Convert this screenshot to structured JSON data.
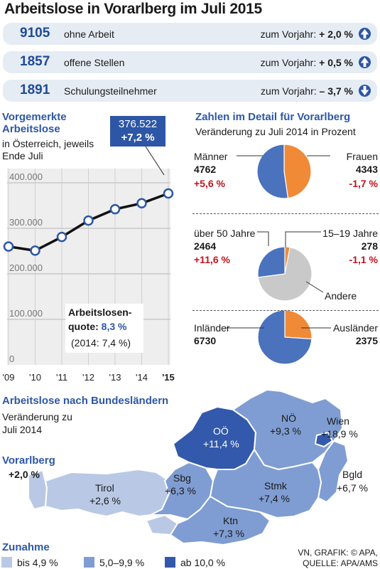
{
  "title": "Arbeitslose in Vorarlberg im Juli 2015",
  "stats": [
    {
      "value": "9105",
      "label": "ohne Arbeit",
      "change_label": "zum Vorjahr:",
      "change": "+ 2,0 %",
      "direction": "up"
    },
    {
      "value": "1857",
      "label": "offene Stellen",
      "change_label": "zum Vorjahr:",
      "change": "+ 0,5 %",
      "direction": "up"
    },
    {
      "value": "1891",
      "label": "Schulungsteilnehmer",
      "change_label": "zum Vorjahr:",
      "change": "– 3,7 %",
      "direction": "down"
    }
  ],
  "line_section": {
    "title_1": "Vorgemerkte",
    "title_2": "Arbeitslose",
    "sub_1": "in Österreich, jeweils",
    "sub_2": "Ende Juli",
    "callout_value": "376.522",
    "callout_change": "+7,2 %",
    "quote_1": "Arbeitslosen-",
    "quote_2": "quote:",
    "quote_value": "8,3 %",
    "quote_prev": "(2014: 7,4 %)"
  },
  "detail_section": {
    "title": "Zahlen im Detail für Vorarlberg",
    "subtitle": "Veränderung zu Juli 2014 in Prozent",
    "m_label": "Männer",
    "m_value": "4762",
    "m_change": "+5,6 %",
    "f_label": "Frauen",
    "f_value": "4343",
    "f_change": "-1,7 %",
    "o50_label": "über 50 Jahre",
    "o50_value": "2464",
    "o50_change": "+11,6 %",
    "y_label": "15–19 Jahre",
    "y_value": "278",
    "y_change": "-1,1 %",
    "rest_label": "Andere",
    "in_label": "Inländer",
    "in_value": "6730",
    "aus_label": "Ausländer",
    "aus_value": "2375"
  },
  "map_section": {
    "title": "Arbeitslose nach Bundesländern",
    "sub_1": "Veränderung zu",
    "sub_2": "Juli 2014",
    "states": [
      {
        "name": "Vorarlberg",
        "value": "+2,0 %",
        "change": 2.0
      },
      {
        "name": "Tirol",
        "value": "+2,6 %",
        "change": 2.6
      },
      {
        "name": "Sbg",
        "value": "+6,3 %",
        "change": 6.3
      },
      {
        "name": "OÖ",
        "value": "+11,4 %",
        "change": 11.4
      },
      {
        "name": "NÖ",
        "value": "+9,3 %",
        "change": 9.3
      },
      {
        "name": "Wien",
        "value": "+18,9 %",
        "change": 18.9
      },
      {
        "name": "Bgld",
        "value": "+6,7 %",
        "change": 6.7
      },
      {
        "name": "Stmk",
        "value": "+7,4 %",
        "change": 7.4
      },
      {
        "name": "Ktn",
        "value": "+7,3 %",
        "change": 7.3
      }
    ],
    "legend_title": "Zunahme",
    "legend": [
      {
        "label": "bis 4,9 %",
        "color": "#b9c8e4"
      },
      {
        "label": "5,0–9,9 %",
        "color": "#7f9dd2"
      },
      {
        "label": "ab 10,0 %",
        "color": "#3259ab"
      }
    ],
    "source_1": "VN, GRAFIK: © APA,",
    "source_2": "QUELLE: APA/AMS"
  },
  "colors": {
    "accent": "#2d57a6",
    "pie_blue": "#4a72bd",
    "pie_orange": "#f08a37",
    "pie_grey": "#c9c9c9",
    "negative": "#c1121f"
  },
  "chart_data": [
    {
      "type": "line",
      "title": "Vorgemerkte Arbeitslose",
      "subtitle": "in Österreich, jeweils Ende Juli",
      "x": [
        "'09",
        "'10",
        "'11",
        "'12",
        "'13",
        "'14",
        "'15"
      ],
      "y": [
        260000,
        251000,
        281000,
        317000,
        342000,
        355000,
        376522
      ],
      "yticks": [
        "0",
        "100.000",
        "200.000",
        "300.000",
        "400.000"
      ],
      "ylim": [
        0,
        400000
      ],
      "grid": true
    },
    {
      "type": "pie",
      "categories": [
        "Männer",
        "Frauen"
      ],
      "values": [
        4762,
        4343
      ],
      "colors": [
        "#4a72bd",
        "#f08a37"
      ]
    },
    {
      "type": "pie",
      "categories": [
        "über 50 Jahre",
        "15–19 Jahre",
        "Andere"
      ],
      "values": [
        2464,
        278,
        6363
      ],
      "colors": [
        "#4a72bd",
        "#f08a37",
        "#c9c9c9"
      ]
    },
    {
      "type": "pie",
      "categories": [
        "Inländer",
        "Ausländer"
      ],
      "values": [
        6730,
        2375
      ],
      "colors": [
        "#4a72bd",
        "#f08a37"
      ]
    }
  ]
}
